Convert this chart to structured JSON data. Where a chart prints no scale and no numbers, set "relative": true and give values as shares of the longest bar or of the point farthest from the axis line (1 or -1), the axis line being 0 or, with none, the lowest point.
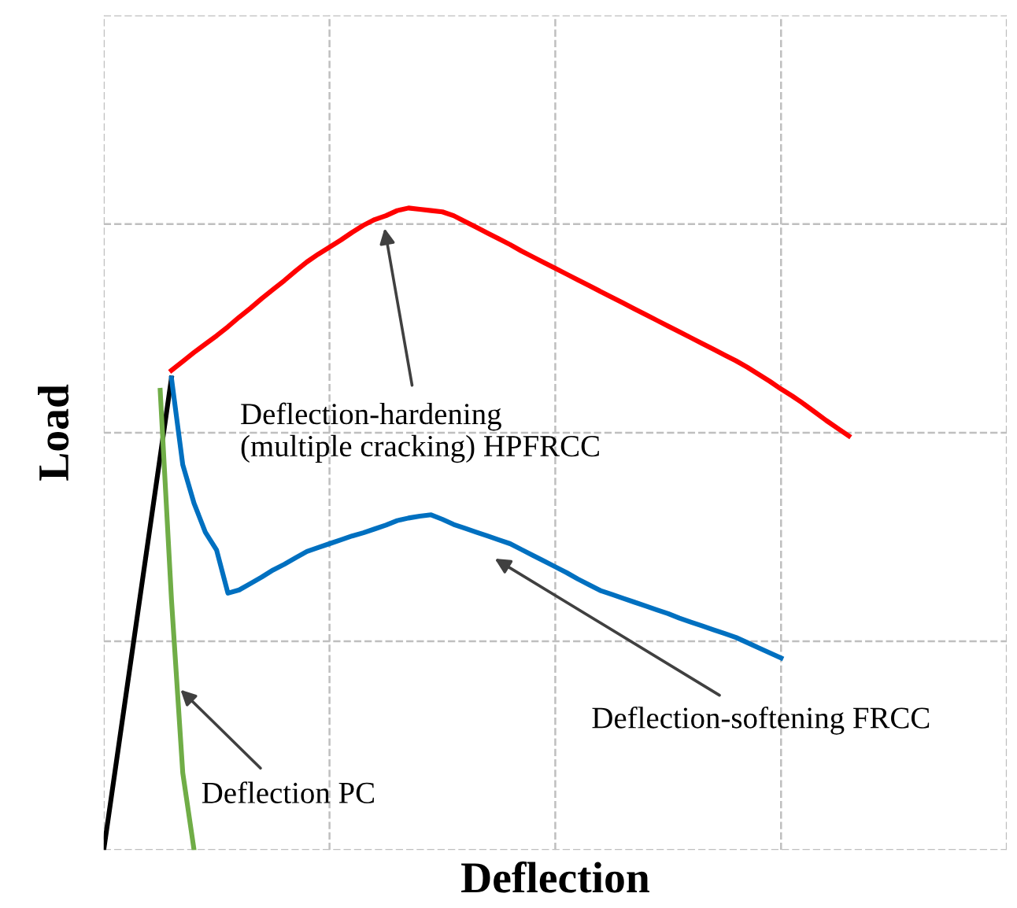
{
  "chart_data": {
    "type": "line",
    "xlabel": "Deflection",
    "ylabel": "Load",
    "relative": true,
    "grid": true,
    "line_style": "solid",
    "marker": "none",
    "categories": [
      null,
      null,
      null,
      null,
      null,
      null,
      null,
      null,
      null,
      null,
      null,
      null,
      null,
      null,
      null,
      null,
      null,
      null,
      null,
      null,
      null,
      null,
      null,
      null,
      null,
      null,
      null,
      null,
      null,
      null,
      null,
      null,
      null,
      null,
      null,
      null,
      null,
      null,
      null,
      null,
      null,
      null,
      null,
      null,
      null,
      null,
      null,
      null,
      null,
      null,
      null,
      null,
      null,
      null,
      null,
      null,
      null,
      null,
      null,
      null,
      null,
      null,
      null,
      null,
      null,
      null,
      null,
      null,
      null,
      null,
      null,
      null,
      null,
      null,
      null,
      null,
      null,
      null,
      null,
      null,
      null
    ],
    "series": [
      {
        "color": "#000000",
        "values": [
          0,
          0.1225,
          0.245,
          0.3675,
          0.49,
          0.6125,
          0.735,
          null,
          null,
          null,
          null,
          null,
          null,
          null,
          null,
          null,
          null,
          null,
          null,
          null,
          null,
          null,
          null,
          null,
          null,
          null,
          null,
          null,
          null,
          null,
          null,
          null,
          null,
          null,
          null,
          null,
          null,
          null,
          null,
          null,
          null,
          null,
          null,
          null,
          null,
          null,
          null,
          null,
          null,
          null,
          null,
          null,
          null,
          null,
          null,
          null,
          null,
          null,
          null,
          null,
          null,
          null,
          null,
          null,
          null,
          null,
          null,
          null,
          null,
          null,
          null,
          null,
          null,
          null,
          null,
          null,
          null,
          null,
          null,
          null,
          null
        ]
      },
      {
        "color": "#70ad47",
        "values": [
          null,
          null,
          null,
          null,
          null,
          0.716,
          0.39,
          0.12,
          0,
          null,
          null,
          null,
          null,
          null,
          null,
          null,
          null,
          null,
          null,
          null,
          null,
          null,
          null,
          null,
          null,
          null,
          null,
          null,
          null,
          null,
          null,
          null,
          null,
          null,
          null,
          null,
          null,
          null,
          null,
          null,
          null,
          null,
          null,
          null,
          null,
          null,
          null,
          null,
          null,
          null,
          null,
          null,
          null,
          null,
          null,
          null,
          null,
          null,
          null,
          null,
          null,
          null,
          null,
          null,
          null,
          null,
          null,
          null,
          null,
          null,
          null,
          null,
          null,
          null,
          null,
          null,
          null,
          null,
          null,
          null,
          null
        ]
      },
      {
        "color": "#0070c0",
        "values": [
          null,
          null,
          null,
          null,
          null,
          null,
          0.735,
          0.6,
          0.54,
          0.495,
          0.467,
          0.4,
          0.405,
          0.415,
          0.425,
          0.436,
          0.445,
          0.455,
          0.465,
          0.471,
          0.477,
          0.483,
          0.489,
          0.494,
          0.5,
          0.506,
          0.513,
          0.517,
          0.52,
          0.522,
          0.515,
          0.507,
          0.501,
          0.495,
          0.489,
          0.483,
          0.477,
          0.468,
          0.459,
          0.45,
          0.441,
          0.432,
          0.422,
          0.413,
          0.404,
          0.398,
          0.392,
          0.386,
          0.38,
          0.374,
          0.368,
          0.361,
          0.355,
          0.349,
          0.343,
          0.337,
          0.331,
          0.323,
          0.315,
          0.307,
          0.299,
          null,
          null,
          null,
          null,
          null,
          null,
          null,
          null,
          null,
          null,
          null,
          null,
          null,
          null,
          null,
          null,
          null,
          null,
          null,
          null
        ]
      },
      {
        "color": "#ff0000",
        "values": [
          null,
          null,
          null,
          null,
          null,
          null,
          0.747,
          0.761,
          0.775,
          0.788,
          0.801,
          0.815,
          0.83,
          0.844,
          0.859,
          0.873,
          0.887,
          0.902,
          0.916,
          0.928,
          0.939,
          0.95,
          0.962,
          0.973,
          0.982,
          0.988,
          0.996,
          1,
          0.998,
          0.996,
          0.994,
          0.988,
          0.979,
          0.97,
          0.961,
          0.952,
          0.943,
          0.933,
          0.924,
          0.915,
          0.906,
          0.897,
          0.888,
          0.879,
          0.87,
          0.861,
          0.852,
          0.843,
          0.834,
          0.825,
          0.816,
          0.807,
          0.798,
          0.789,
          0.78,
          0.771,
          0.762,
          0.752,
          0.741,
          0.73,
          0.718,
          0.707,
          0.695,
          0.682,
          0.669,
          0.657,
          0.645,
          null,
          null,
          null,
          null,
          null,
          null,
          null,
          null,
          null,
          null,
          null,
          null,
          null,
          null
        ]
      }
    ],
    "annotations": [
      "Deflection-hardening\n(multiple cracking) HPFRCC",
      "Deflection-softening FRCC",
      "Deflection PC"
    ]
  }
}
